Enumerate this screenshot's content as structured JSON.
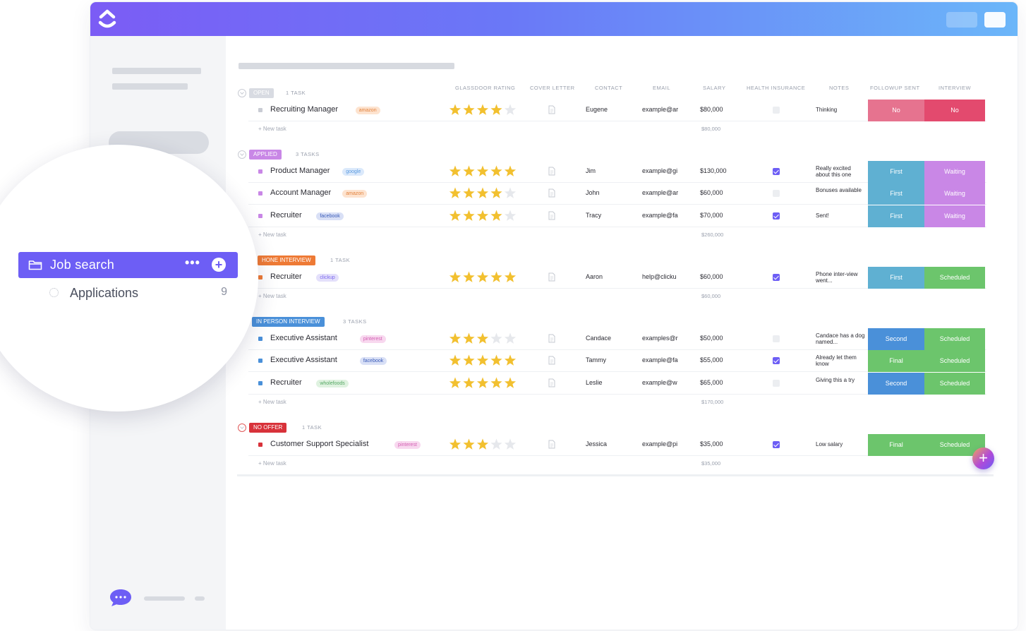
{
  "sidebar": {
    "space_name": "Job search",
    "list_name": "Applications",
    "list_count": "9",
    "more_glyph": "•••",
    "add_glyph": "+"
  },
  "columns": [
    "GLASSDOOR RATING",
    "COVER LETTER",
    "CONTACT",
    "EMAIL",
    "SALARY",
    "HEALTH INSURANCE",
    "NOTES",
    "FOLLOWUP SENT",
    "INTERVIEW"
  ],
  "new_task_label": "+ New task",
  "fab_glyph": "+",
  "colors": {
    "accent": "#6d5ef5",
    "pink": "#e6738f",
    "red": "#e34a6e",
    "blue_teal": "#5fb0d2",
    "lavender": "#c987e6",
    "green": "#6cc56c",
    "blue": "#4a90d9"
  },
  "groups": [
    {
      "status": "OPEN",
      "count": "1 TASK",
      "color": "#d8dbe2",
      "total": "$80,000",
      "tasks": [
        {
          "name": "Recruiting Manager",
          "tag": "amazon",
          "rating": 4,
          "contact": "Eugene",
          "email": "example@ar",
          "salary": "$80,000",
          "insurance": false,
          "notes": "Thinking",
          "followup": "No",
          "interview": "No"
        }
      ]
    },
    {
      "status": "APPLIED",
      "count": "3 TASKS",
      "color": "#c987e6",
      "total": "$260,000",
      "tasks": [
        {
          "name": "Product Manager",
          "tag": "google",
          "rating": 5,
          "contact": "Jim",
          "email": "example@gi",
          "salary": "$130,000",
          "insurance": true,
          "notes": "Really excited about this one",
          "followup": "First",
          "interview": "Waiting"
        },
        {
          "name": "Account Manager",
          "tag": "amazon",
          "rating": 4,
          "contact": "John",
          "email": "example@ar",
          "salary": "$60,000",
          "insurance": false,
          "notes": "Bonuses available",
          "followup": "First",
          "interview": "Waiting"
        },
        {
          "name": "Recruiter",
          "tag": "facebook",
          "rating": 4,
          "contact": "Tracy",
          "email": "example@fa",
          "salary": "$70,000",
          "insurance": true,
          "notes": "Sent!",
          "followup": "First",
          "interview": "Waiting"
        }
      ]
    },
    {
      "status": "HONE INTERVIEW",
      "count": "1 TASK",
      "color": "#ee7a35",
      "total": "$60,000",
      "tasks": [
        {
          "name": "Recruiter",
          "tag": "clickup",
          "rating": 5,
          "contact": "Aaron",
          "email": "help@clicku",
          "salary": "$60,000",
          "insurance": true,
          "notes": "Phone inter-view went...",
          "followup": "First",
          "interview": "Scheduled"
        }
      ]
    },
    {
      "status": "IN PERSON INTERVIEW",
      "count": "3 TASKS",
      "color": "#4a90d9",
      "total": "$170,000",
      "tasks": [
        {
          "name": "Executive Assistant",
          "tag": "pinterest",
          "rating": 3,
          "contact": "Candace",
          "email": "examples@r",
          "salary": "$50,000",
          "insurance": false,
          "notes": "Candace has a dog named...",
          "followup": "Second",
          "interview": "Scheduled"
        },
        {
          "name": "Executive Assistant",
          "tag": "facebook",
          "rating": 5,
          "contact": "Tammy",
          "email": "example@fa",
          "salary": "$55,000",
          "insurance": true,
          "notes": "Already let them know",
          "followup": "Final",
          "interview": "Scheduled"
        },
        {
          "name": "Recruiter",
          "tag": "wholefoods",
          "rating": 5,
          "contact": "Leslie",
          "email": "example@w",
          "salary": "$65,000",
          "insurance": false,
          "notes": "Giving this a try",
          "followup": "Second",
          "interview": "Scheduled"
        }
      ]
    },
    {
      "status": "NO OFFER",
      "count": "1 TASK",
      "color": "#d8323a",
      "total": "$35,000",
      "tasks": [
        {
          "name": "Customer Support Specialist",
          "tag": "pinterest",
          "rating": 3,
          "contact": "Jessica",
          "email": "example@pi",
          "salary": "$35,000",
          "insurance": true,
          "notes": "Low salary",
          "followup": "Final",
          "interview": "Scheduled"
        }
      ]
    }
  ]
}
